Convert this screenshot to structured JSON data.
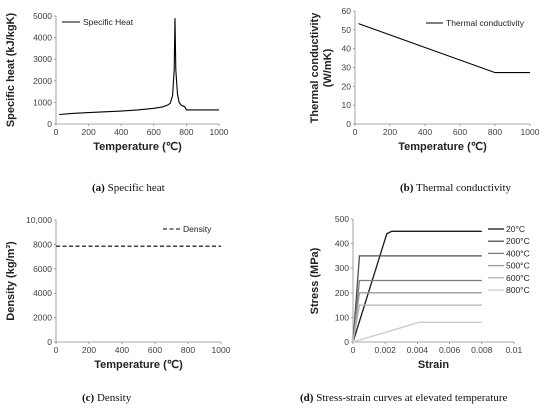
{
  "panels": [
    {
      "id": "a",
      "caption_label": "(a)",
      "caption_text": " Specific heat",
      "chart_data": {
        "type": "line",
        "xlabel": "Temperature (℃)",
        "ylabel": "Specific heat (kJ/kgK)",
        "xlim": [
          0,
          1000
        ],
        "ylim": [
          0,
          5000
        ],
        "xticks": [
          "0",
          "200",
          "400",
          "600",
          "800",
          "1000"
        ],
        "yticks": [
          "0",
          "1000",
          "2000",
          "3000",
          "4000",
          "5000"
        ],
        "legend_position": "top-left",
        "series": [
          {
            "name": "Specific Heat",
            "style": "solid",
            "color": "#000000",
            "x": [
              20,
              100,
              200,
              300,
              400,
              500,
              550,
              600,
              650,
              680,
              700,
              715,
              725,
              730,
              735,
              745,
              755,
              770,
              790,
              800,
              850,
              900,
              1000
            ],
            "y": [
              440,
              488,
              530,
              565,
              600,
              650,
              685,
              725,
              785,
              860,
              950,
              1300,
              2500,
              4900,
              2500,
              1400,
              1000,
              860,
              800,
              650,
              650,
              650,
              650
            ]
          }
        ]
      }
    },
    {
      "id": "b",
      "caption_label": "(b)",
      "caption_text": " Thermal conductivity",
      "chart_data": {
        "type": "line",
        "xlabel": "Temperature (℃)",
        "ylabel": "Thermal conductivity (W/mK)",
        "xlim": [
          0,
          1000
        ],
        "ylim": [
          0,
          60
        ],
        "xticks": [
          "0",
          "200",
          "400",
          "600",
          "800",
          "1000"
        ],
        "yticks": [
          "0",
          "10",
          "20",
          "30",
          "40",
          "50",
          "60"
        ],
        "legend_position": "top-right",
        "series": [
          {
            "name": "Thermal conductivity",
            "style": "solid",
            "color": "#000000",
            "x": [
              20,
              800,
              1000
            ],
            "y": [
              53.3,
              27.3,
              27.3
            ]
          }
        ]
      }
    },
    {
      "id": "c",
      "caption_label": "(c)",
      "caption_text": " Density",
      "chart_data": {
        "type": "line",
        "xlabel": "Temperature (℃)",
        "ylabel": "Density (kg/m³)",
        "xlim": [
          0,
          1000
        ],
        "ylim": [
          0,
          10000
        ],
        "xticks": [
          "0",
          "200",
          "400",
          "600",
          "800",
          "1000"
        ],
        "yticks": [
          "0",
          "2000",
          "4000",
          "6000",
          "8000",
          "10,000"
        ],
        "legend_position": "top-right",
        "series": [
          {
            "name": "Density",
            "style": "dashed",
            "color": "#000000",
            "x": [
              0,
              1000
            ],
            "y": [
              7850,
              7850
            ]
          }
        ]
      }
    },
    {
      "id": "d",
      "caption_label": "(d)",
      "caption_text": " Stress-strain curves at elevated temperature",
      "chart_data": {
        "type": "line",
        "xlabel": "Strain",
        "ylabel": "Stress (MPa)",
        "xlim": [
          0,
          0.01
        ],
        "ylim": [
          0,
          500
        ],
        "xticks": [
          "0",
          "0.002",
          "0.004",
          "0.006",
          "0.008",
          "0.01"
        ],
        "yticks": [
          "0",
          "100",
          "200",
          "300",
          "400",
          "500"
        ],
        "legend_position": "top-right",
        "series": [
          {
            "name": "20°C",
            "color": "#1a1a1a",
            "x": [
              0,
              0.0021,
              0.0024,
              0.008
            ],
            "y": [
              0,
              440,
              450,
              450
            ]
          },
          {
            "name": "200°C",
            "color": "#4d4d4d",
            "x": [
              0,
              0.0004,
              0.008
            ],
            "y": [
              0,
              350,
              350
            ]
          },
          {
            "name": "400°C",
            "color": "#7a7a7a",
            "x": [
              0,
              0.0004,
              0.008
            ],
            "y": [
              0,
              250,
              250
            ]
          },
          {
            "name": "500°C",
            "color": "#999999",
            "x": [
              0,
              0.0004,
              0.008
            ],
            "y": [
              0,
              200,
              200
            ]
          },
          {
            "name": "600°C",
            "color": "#b3b3b3",
            "x": [
              0,
              0.0004,
              0.008
            ],
            "y": [
              0,
              150,
              150
            ]
          },
          {
            "name": "800°C",
            "color": "#cccccc",
            "x": [
              0,
              0.0041,
              0.008
            ],
            "y": [
              0,
              80,
              80
            ]
          }
        ]
      }
    }
  ]
}
